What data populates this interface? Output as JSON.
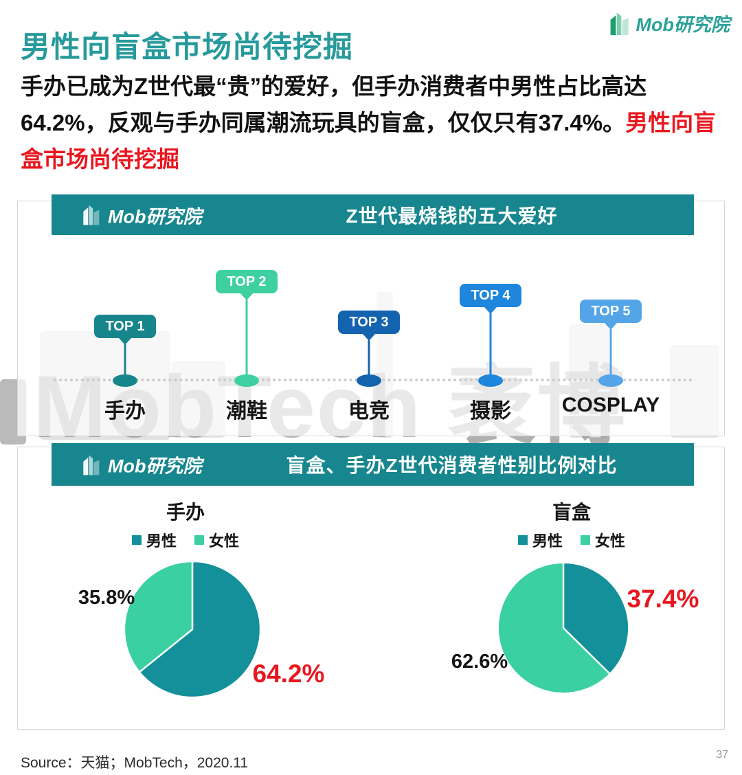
{
  "brand": {
    "logo_text": "Mob研究院",
    "watermark_text": "MobTech 袤博",
    "teal": "#17868e",
    "mint": "#3bd0a2",
    "red": "#e8171f"
  },
  "header": {
    "title": "男性向盲盒市场尚待挖掘",
    "intro_black": "手办已成为Z世代最“贵”的爱好，但手办消费者中男性占比高达64.2%，反观与手办同属潮流玩具的盲盒，仅仅只有37.4%。",
    "intro_red": "男性向盲盒市场尚待挖掘"
  },
  "panel_top5": {
    "title": "Z世代最烧钱的五大爱好",
    "items": [
      {
        "rank": "TOP 1",
        "label": "手办",
        "color": "#17858c"
      },
      {
        "rank": "TOP 2",
        "label": "潮鞋",
        "color": "#3ed0a0"
      },
      {
        "rank": "TOP 3",
        "label": "电竞",
        "color": "#1363af"
      },
      {
        "rank": "TOP 4",
        "label": "摄影",
        "color": "#1e86dc"
      },
      {
        "rank": "TOP 5",
        "label": "COSPLAY",
        "color": "#54a5e8"
      }
    ]
  },
  "panel_gender": {
    "title": "盲盒、手办Z世代消费者性别比例对比"
  },
  "chart_data": [
    {
      "type": "pie",
      "title": "手办",
      "labels": [
        "男性",
        "女性"
      ],
      "values": [
        64.2,
        35.8
      ],
      "value_labels": [
        "64.2%",
        "35.8%"
      ],
      "colors": [
        "#13909a",
        "#3bd0a2"
      ],
      "start_angle_deg": 0,
      "direction": "clockwise",
      "legend_position": "top",
      "highlighted_value": "64.2%"
    },
    {
      "type": "pie",
      "title": "盲盒",
      "labels": [
        "男性",
        "女性"
      ],
      "values": [
        37.4,
        62.6
      ],
      "value_labels": [
        "37.4%",
        "62.6%"
      ],
      "colors": [
        "#13909a",
        "#3bd0a2"
      ],
      "start_angle_deg": 0,
      "direction": "clockwise",
      "legend_position": "top",
      "highlighted_value": "37.4%"
    }
  ],
  "footer": {
    "source": "Source：天猫；MobTech，2020.11",
    "page_number": "37"
  }
}
